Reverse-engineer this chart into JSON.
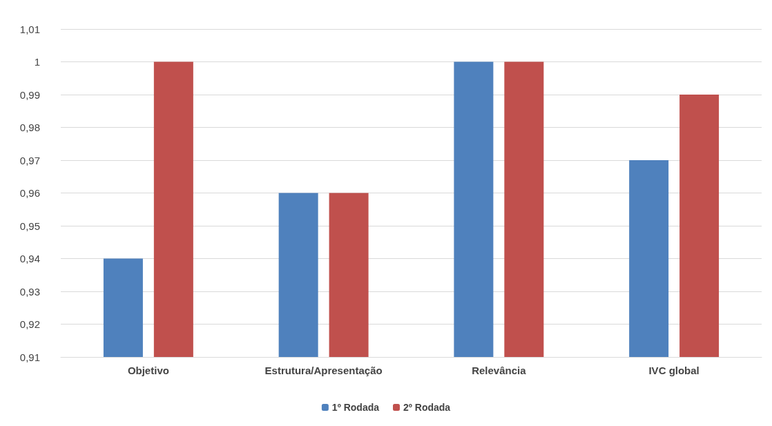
{
  "chart_data": {
    "type": "bar",
    "categories": [
      "Objetivo",
      "Estrutura/Apresentação",
      "Relevância",
      "IVC global"
    ],
    "series": [
      {
        "name": "1º Rodada",
        "color": "#4f81bd",
        "values": [
          0.94,
          0.96,
          1,
          0.97
        ]
      },
      {
        "name": "2º Rodada",
        "color": "#c0504d",
        "values": [
          1,
          0.96,
          1,
          0.99
        ]
      }
    ],
    "ylim": [
      0.91,
      1.01
    ],
    "yticks": [
      {
        "value": 0.91,
        "label": "0,91"
      },
      {
        "value": 0.92,
        "label": "0,92"
      },
      {
        "value": 0.93,
        "label": "0,93"
      },
      {
        "value": 0.94,
        "label": "0,94"
      },
      {
        "value": 0.95,
        "label": "0,95"
      },
      {
        "value": 0.96,
        "label": "0,96"
      },
      {
        "value": 0.97,
        "label": "0,97"
      },
      {
        "value": 0.98,
        "label": "0,98"
      },
      {
        "value": 0.99,
        "label": "0,99"
      },
      {
        "value": 1,
        "label": "1"
      },
      {
        "value": 1.01,
        "label": "1,01"
      }
    ],
    "grid": "y",
    "legend": "bottom"
  }
}
